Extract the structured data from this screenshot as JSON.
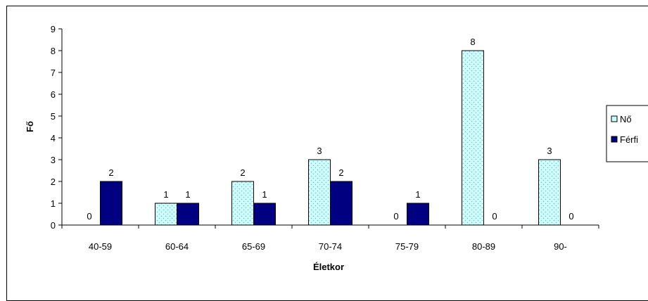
{
  "chart_data": {
    "type": "bar",
    "categories": [
      "40-59",
      "60-64",
      "65-69",
      "70-74",
      "75-79",
      "80-89",
      "90-"
    ],
    "series": [
      {
        "name": "Nő",
        "values": [
          0,
          1,
          2,
          3,
          0,
          8,
          3
        ],
        "color": "#ccffff",
        "pattern": "dotted"
      },
      {
        "name": "Férfi",
        "values": [
          2,
          1,
          1,
          2,
          1,
          0,
          0
        ],
        "color": "#000080"
      }
    ],
    "data_labels": [
      [
        "0",
        "1",
        "2",
        "3",
        "0",
        "8",
        "3"
      ],
      [
        "2",
        "1",
        "1",
        "2",
        "1",
        "0",
        "0"
      ]
    ],
    "y_ticks": [
      "0",
      "1",
      "2",
      "3",
      "4",
      "5",
      "6",
      "7",
      "8",
      "9"
    ],
    "xlabel": "Életkor",
    "ylabel": "Fő",
    "ylim": [
      0,
      9
    ],
    "grid": false,
    "legend": "right"
  }
}
